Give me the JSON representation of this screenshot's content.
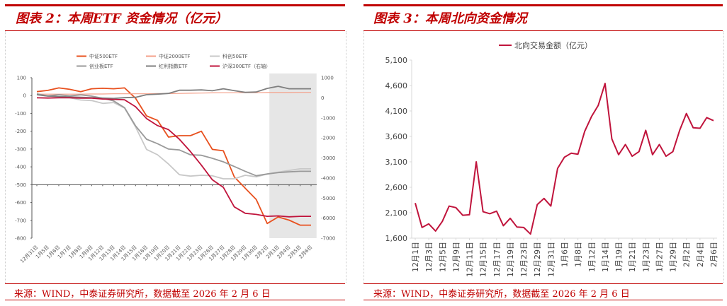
{
  "left": {
    "title": "图表 2：本周ETF 资金情况（亿元）",
    "source": "来源：WIND，中泰证券研究所，数据截至 2026 年 2 月 6 日"
  },
  "right": {
    "title": "图表 3：本周北向资金情况",
    "source": "来源：WIND，中泰证券研究所，数据截至 2026 年 2 月 6 日"
  },
  "chart_data": [
    {
      "type": "line",
      "title": "图表 2：本周ETF 资金情况（亿元）",
      "categories": [
        "12月31日",
        "1月5日",
        "1月6日",
        "1月7日",
        "1月8日",
        "1月9日",
        "1月12日",
        "1月13日",
        "1月14日",
        "1月15日",
        "1月16日",
        "1月19日",
        "1月20日",
        "1月21日",
        "1月22日",
        "1月23日",
        "1月26日",
        "1月27日",
        "1月28日",
        "1月29日",
        "1月30日",
        "2月2日",
        "2月3日",
        "2月4日",
        "2月5日",
        "2月6日"
      ],
      "ylim": [
        -800,
        100
      ],
      "yticks": [
        "100",
        "0",
        "-100",
        "-200",
        "-300",
        "-400",
        "-500",
        "-600",
        "-700",
        "-800"
      ],
      "y2lim": [
        -7000,
        1000
      ],
      "y2ticks": [
        "1000",
        "0",
        "-1000",
        "-2000",
        "-3000",
        "-4000",
        "-5000",
        "-6000",
        "-7000"
      ],
      "shaded_range": [
        "2月3日",
        "2月6日"
      ],
      "legend_position": "top",
      "series": [
        {
          "name": "中证500ETF",
          "color": "#e8501e",
          "axis": "left",
          "values": [
            22,
            29,
            43,
            35,
            22,
            38,
            41,
            38,
            43,
            -15,
            -114,
            -139,
            -233,
            -225,
            -225,
            -200,
            -302,
            -310,
            -456,
            -520,
            -583,
            -718,
            -681,
            -699,
            -727,
            -727
          ]
        },
        {
          "name": "中证2000ETF",
          "color": "#f4a08a",
          "axis": "left",
          "values": [
            8,
            8,
            8,
            8,
            8,
            9,
            9,
            10,
            10,
            10,
            10,
            11,
            11,
            12,
            13,
            14,
            15,
            16,
            16,
            16,
            16,
            17,
            17,
            17,
            18,
            18
          ]
        },
        {
          "name": "科创50ETF",
          "color": "#c8c8c8",
          "axis": "left",
          "values": [
            5,
            -2,
            -7,
            -12,
            -25,
            -28,
            -44,
            -39,
            -70,
            -176,
            -302,
            -332,
            -384,
            -444,
            -452,
            -447,
            -450,
            -467,
            -467,
            -447,
            -456,
            -440,
            -430,
            -420,
            -411,
            -411
          ]
        },
        {
          "name": "创业板ETF",
          "color": "#9a9a9a",
          "axis": "left",
          "values": [
            10,
            -2,
            5,
            -2,
            4,
            -3,
            -15,
            -30,
            -68,
            -170,
            -245,
            -270,
            -300,
            -305,
            -332,
            -335,
            -352,
            -372,
            -398,
            -425,
            -450,
            -440,
            -432,
            -428,
            -425,
            -425
          ]
        },
        {
          "name": "红利指数ETF",
          "color": "#7f7f7f",
          "axis": "left",
          "values": [
            5,
            -3,
            -5,
            -8,
            -10,
            -12,
            -14,
            -16,
            -12,
            -10,
            5,
            8,
            12,
            30,
            30,
            32,
            27,
            38,
            28,
            18,
            20,
            40,
            52,
            38,
            38,
            38
          ]
        },
        {
          "name": "沪深300ETF（右轴）",
          "color": "#c0143c",
          "axis": "right",
          "values": [
            0,
            -10,
            0,
            0,
            -20,
            -20,
            -60,
            -80,
            -100,
            -446,
            -1034,
            -1387,
            -1586,
            -2068,
            -2680,
            -3360,
            -4090,
            -4465,
            -5440,
            -5760,
            -5815,
            -5910,
            -5890,
            -5935,
            -5910,
            -5910
          ]
        }
      ]
    },
    {
      "type": "line",
      "title": "图表 3：本周北向资金情况",
      "categories": [
        "12月1日",
        "",
        "12月3日",
        "",
        "12月5日",
        "",
        "12月9日",
        "",
        "12月11日",
        "",
        "12月15日",
        "",
        "12月17日",
        "",
        "12月19日",
        "",
        "12月23日",
        "",
        "12月29日",
        "",
        "12月31日",
        "",
        "1月6日",
        "",
        "1月8日",
        "",
        "1月12日",
        "",
        "1月14日",
        "",
        "1月19日",
        "",
        "1月21日",
        "",
        "1月23日",
        "",
        "1月27日",
        "",
        "1月29日",
        "",
        "2月2日",
        "",
        "2月4日",
        "",
        "2月6日"
      ],
      "ylim": [
        1600,
        5100
      ],
      "yticks": [
        "1,600",
        "2,100",
        "2,600",
        "3,100",
        "3,600",
        "4,100",
        "4,600",
        "5,100"
      ],
      "legend_position": "top",
      "series": [
        {
          "name": "北向交易金额（亿元）",
          "color": "#c0143c",
          "values": [
            2290,
            1810,
            1880,
            1740,
            1930,
            2230,
            2200,
            2050,
            2060,
            3100,
            2120,
            2080,
            2130,
            1845,
            1990,
            1820,
            1810,
            1680,
            2260,
            2380,
            2230,
            2970,
            3190,
            3270,
            3250,
            3700,
            3990,
            4210,
            4640,
            3550,
            3240,
            3440,
            3210,
            3300,
            3720,
            3240,
            3440,
            3210,
            3300,
            3720,
            4050,
            3770,
            3760,
            3970,
            3910
          ]
        }
      ]
    }
  ]
}
